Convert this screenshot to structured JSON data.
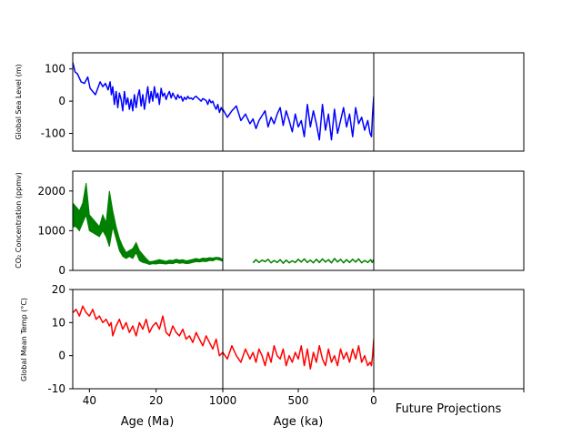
{
  "colors": {
    "sea_level": "#0000ff",
    "co2": "#008000",
    "temperature": "#ff0000",
    "axes": "#000000",
    "background": "#ffffff"
  },
  "column_labels": {
    "ma": "Age (Ma)",
    "ka": "Age (ka)",
    "future": "Future Projections"
  },
  "chart_data": [
    {
      "type": "line",
      "ylabel": "Global Sea Level (m)",
      "ylim": [
        -155,
        150
      ],
      "yticks": [
        "-100",
        "0",
        "100"
      ],
      "series_color_key": "sea_level",
      "panels": {
        "ma": {
          "xlim": [
            45,
            0
          ],
          "x": [
            45,
            44.3,
            43.6,
            42.5,
            41.5,
            40.5,
            39.8,
            39,
            38.2,
            37.5,
            36.8,
            36,
            35.2,
            34.4,
            33.8,
            33.4,
            33,
            32.5,
            32,
            31.5,
            31,
            30.5,
            30,
            29.5,
            29,
            28.5,
            28,
            27.5,
            27,
            26.5,
            26,
            25.5,
            25,
            24.5,
            24,
            23.5,
            23,
            22.5,
            22,
            21.5,
            21,
            20.5,
            20,
            19.5,
            19,
            18.5,
            18,
            17.5,
            17,
            16.5,
            16,
            15.5,
            15,
            14.5,
            14,
            13.5,
            13,
            12.5,
            12,
            11.5,
            11,
            10.5,
            10,
            9.5,
            9,
            8.5,
            8,
            7.5,
            7,
            6.5,
            6,
            5.5,
            5,
            4.5,
            4,
            3.5,
            3,
            2.5,
            2,
            1.5,
            1,
            0.5,
            0
          ],
          "y": [
            120,
            90,
            85,
            60,
            55,
            75,
            40,
            30,
            20,
            40,
            60,
            45,
            55,
            35,
            60,
            20,
            45,
            -10,
            30,
            -20,
            25,
            5,
            -30,
            30,
            -10,
            10,
            -25,
            5,
            -30,
            20,
            -20,
            15,
            35,
            -15,
            20,
            -25,
            10,
            45,
            -5,
            30,
            0,
            45,
            10,
            25,
            -10,
            40,
            15,
            25,
            5,
            20,
            30,
            10,
            25,
            15,
            5,
            20,
            10,
            15,
            0,
            12,
            5,
            15,
            8,
            10,
            5,
            12,
            15,
            10,
            5,
            0,
            8,
            5,
            2,
            -10,
            5,
            -5,
            0,
            -15,
            -25,
            -10,
            -35,
            -20,
            -30
          ]
        },
        "ka": {
          "xlim": [
            1000,
            0
          ],
          "x": [
            1000,
            970,
            940,
            910,
            880,
            850,
            820,
            800,
            780,
            760,
            740,
            720,
            700,
            680,
            660,
            640,
            620,
            600,
            580,
            560,
            540,
            520,
            500,
            480,
            460,
            440,
            420,
            400,
            380,
            360,
            340,
            320,
            300,
            280,
            260,
            240,
            220,
            200,
            180,
            160,
            140,
            120,
            100,
            80,
            60,
            40,
            25,
            15,
            8,
            0
          ],
          "y": [
            -25,
            -50,
            -30,
            -15,
            -60,
            -40,
            -70,
            -55,
            -85,
            -60,
            -45,
            -30,
            -80,
            -50,
            -70,
            -40,
            -20,
            -75,
            -30,
            -60,
            -95,
            -40,
            -80,
            -60,
            -110,
            -10,
            -80,
            -30,
            -70,
            -120,
            -10,
            -90,
            -40,
            -120,
            -25,
            -100,
            -60,
            -20,
            -80,
            -40,
            -110,
            -20,
            -70,
            -50,
            -90,
            -60,
            -100,
            -110,
            -40,
            15
          ]
        },
        "future": {
          "x": [],
          "y": []
        }
      }
    },
    {
      "type": "area",
      "ylabel": "CO₂ Concentration (ppmv)",
      "ylim": [
        0,
        2500
      ],
      "yticks": [
        "0",
        "1000",
        "2000"
      ],
      "series_color_key": "co2",
      "panels": {
        "ma": {
          "xlim": [
            45,
            0
          ],
          "x": [
            45,
            44,
            43,
            42,
            41,
            40,
            39,
            38,
            37,
            36,
            35,
            34,
            33,
            32,
            31,
            30,
            29,
            28,
            27,
            26,
            25,
            24,
            23,
            22,
            21,
            20,
            19,
            18,
            17,
            16,
            15,
            14,
            13,
            12,
            11,
            10,
            9,
            8,
            7,
            6,
            5,
            4,
            3,
            2,
            1,
            0
          ],
          "low": [
            1100,
            1100,
            1000,
            1200,
            1400,
            1000,
            950,
            900,
            850,
            1000,
            850,
            600,
            1100,
            800,
            500,
            350,
            300,
            350,
            300,
            450,
            250,
            200,
            180,
            150,
            170,
            160,
            180,
            170,
            160,
            180,
            170,
            200,
            180,
            190,
            170,
            180,
            200,
            220,
            210,
            230,
            220,
            250,
            240,
            280,
            260,
            230
          ],
          "high": [
            1700,
            1600,
            1500,
            1700,
            2200,
            1400,
            1300,
            1200,
            1100,
            1400,
            1200,
            2000,
            1500,
            1100,
            800,
            600,
            450,
            500,
            550,
            700,
            500,
            400,
            300,
            220,
            230,
            250,
            270,
            250,
            230,
            260,
            250,
            280,
            260,
            270,
            240,
            260,
            280,
            300,
            280,
            310,
            300,
            320,
            310,
            330,
            320,
            280
          ]
        },
        "ka": {
          "xlim": [
            1000,
            0
          ],
          "x": [
            800,
            780,
            760,
            740,
            720,
            700,
            680,
            660,
            640,
            620,
            600,
            580,
            560,
            540,
            520,
            500,
            480,
            460,
            440,
            420,
            400,
            380,
            360,
            340,
            320,
            300,
            280,
            260,
            240,
            220,
            200,
            180,
            160,
            140,
            120,
            100,
            80,
            60,
            40,
            20,
            10,
            0
          ],
          "y": [
            190,
            270,
            200,
            260,
            220,
            280,
            190,
            250,
            200,
            270,
            180,
            260,
            190,
            240,
            200,
            280,
            210,
            290,
            200,
            260,
            190,
            280,
            200,
            290,
            210,
            270,
            190,
            300,
            210,
            280,
            190,
            270,
            200,
            280,
            210,
            290,
            190,
            250,
            200,
            270,
            200,
            280
          ]
        },
        "future": {
          "x": [],
          "y": []
        }
      }
    },
    {
      "type": "line",
      "ylabel": "Global Mean Temp (°C)",
      "ylim": [
        -10,
        20
      ],
      "yticks": [
        "-10",
        "0",
        "10",
        "20"
      ],
      "series_color_key": "temperature",
      "panels": {
        "ma": {
          "xlim": [
            45,
            0
          ],
          "x": [
            45,
            44,
            43,
            42,
            41,
            40,
            39,
            38,
            37,
            36,
            35,
            34,
            33.5,
            33,
            32,
            31,
            30,
            29,
            28,
            27,
            26,
            25,
            24,
            23,
            22,
            21,
            20,
            19,
            18,
            17,
            16,
            15,
            14,
            13,
            12,
            11,
            10,
            9,
            8,
            7,
            6,
            5,
            4,
            3,
            2,
            1,
            0
          ],
          "y": [
            13,
            14,
            12,
            15,
            13,
            12,
            14,
            11,
            12,
            10,
            11,
            9,
            10,
            6,
            9,
            11,
            8,
            10,
            7,
            9,
            6,
            10,
            8,
            11,
            7,
            9,
            10,
            8,
            12,
            7,
            6,
            9,
            7,
            6,
            8,
            5,
            6,
            4,
            7,
            5,
            3,
            6,
            4,
            2,
            5,
            0,
            1
          ]
        },
        "ka": {
          "xlim": [
            1000,
            0
          ],
          "x": [
            1000,
            970,
            940,
            910,
            880,
            850,
            820,
            800,
            780,
            760,
            740,
            720,
            700,
            680,
            660,
            640,
            620,
            600,
            580,
            560,
            540,
            520,
            500,
            480,
            460,
            440,
            420,
            400,
            380,
            360,
            340,
            320,
            300,
            280,
            260,
            240,
            220,
            200,
            180,
            160,
            140,
            120,
            100,
            80,
            60,
            40,
            25,
            15,
            8,
            0
          ],
          "y": [
            1,
            -1,
            3,
            0,
            -2,
            2,
            -1,
            1,
            -2,
            2,
            0,
            -3,
            1,
            -2,
            3,
            0,
            -1,
            2,
            -3,
            0,
            -2,
            1,
            -1,
            3,
            -3,
            2,
            -4,
            1,
            -2,
            3,
            -1,
            -3,
            2,
            -2,
            0,
            -3,
            2,
            -1,
            1,
            -2,
            2,
            -1,
            3,
            -2,
            0,
            -3,
            -2,
            -3,
            0,
            5
          ]
        },
        "future": {
          "x": [],
          "y": []
        }
      }
    }
  ],
  "x_axis": {
    "ma_ticks": [
      "40",
      "20"
    ],
    "ma_tick_values": [
      40,
      20
    ],
    "ka_ticks": [
      "1000",
      "500",
      "0"
    ],
    "ka_tick_values": [
      1000,
      500,
      0
    ]
  }
}
